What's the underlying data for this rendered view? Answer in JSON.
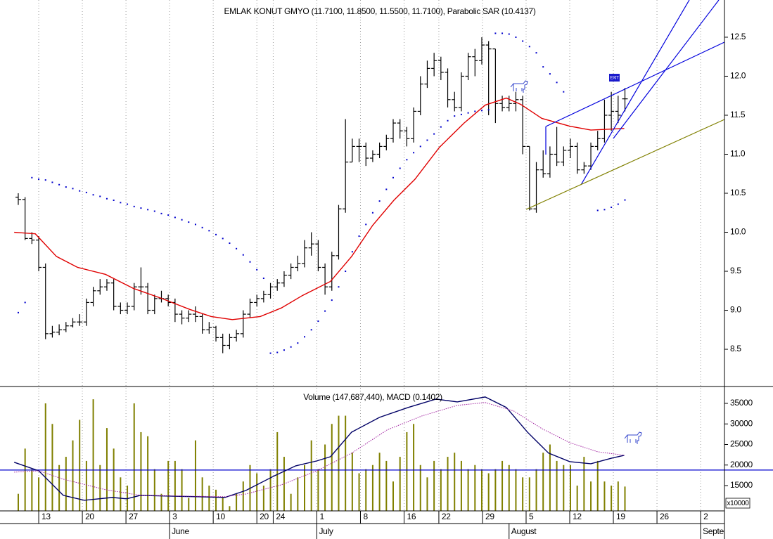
{
  "x_axis": {
    "xlim": [
      -2.68,
      103.6
    ],
    "ticks": [
      {
        "value": 3.0,
        "label": "13"
      },
      {
        "value": 9.4,
        "label": "20"
      },
      {
        "value": 15.8,
        "label": "27"
      },
      {
        "value": 22.2,
        "label": "3"
      },
      {
        "value": 28.6,
        "label": "10"
      },
      {
        "value": 35.0,
        "label": "20"
      },
      {
        "value": 37.4,
        "label": "24"
      },
      {
        "value": 43.8,
        "label": "1"
      },
      {
        "value": 50.2,
        "label": "8"
      },
      {
        "value": 56.6,
        "label": "16"
      },
      {
        "value": 61.7,
        "label": "22"
      },
      {
        "value": 68.1,
        "label": "29"
      },
      {
        "value": 74.5,
        "label": "5"
      },
      {
        "value": 80.9,
        "label": "12"
      },
      {
        "value": 87.3,
        "label": "19"
      },
      {
        "value": 93.7,
        "label": "26"
      },
      {
        "value": 100.1,
        "label": "2"
      }
    ],
    "months": [
      {
        "value": 22.2,
        "label": "June"
      },
      {
        "value": 43.8,
        "label": "July"
      },
      {
        "value": 72.0,
        "label": "August"
      },
      {
        "value": 100.1,
        "label": "Septe"
      }
    ]
  },
  "chart_data": [
    {
      "type": "ohlc",
      "title": "EMLAK KONUT GMYO (11.7100, 11.8500, 11.5500, 11.7100), Parabolic SAR (10.4137)",
      "color": "#000000",
      "ylim": [
        8.023,
        12.977
      ],
      "grid": true,
      "yticks": [
        8.5,
        {
          "value": 9,
          "label": "9.0"
        },
        9.5,
        {
          "value": 10,
          "label": "10.0"
        },
        10.5,
        {
          "value": 11,
          "label": "11.0"
        },
        11.5,
        {
          "value": 12,
          "label": "12.0"
        },
        12.5
      ],
      "open": [
        10.45,
        10.42,
        9.92,
        9.9,
        9.55,
        8.7,
        8.72,
        8.75,
        8.8,
        8.85,
        8.85,
        9.1,
        9.25,
        9.3,
        9.35,
        9.05,
        9.0,
        9.05,
        9.3,
        9.3,
        9.0,
        9.15,
        9.15,
        9.1,
        8.95,
        8.9,
        8.95,
        8.92,
        8.75,
        8.78,
        8.65,
        8.55,
        8.65,
        8.7,
        8.95,
        9.1,
        9.15,
        9.2,
        9.3,
        9.35,
        9.45,
        9.55,
        9.6,
        9.8,
        9.85,
        9.55,
        9.3,
        9.7,
        10.3,
        10.9,
        11.1,
        11.1,
        10.95,
        11.0,
        11.1,
        11.2,
        11.4,
        11.3,
        11.2,
        11.55,
        11.9,
        12.1,
        12.2,
        12.05,
        11.7,
        11.6,
        12.0,
        12.25,
        12.2,
        12.4,
        12.35,
        11.65,
        11.6,
        11.65,
        11.7,
        11.1,
        10.3,
        10.8,
        10.75,
        11.0,
        10.9,
        11.05,
        11.1,
        10.8,
        10.85,
        11.1,
        11.2,
        11.5,
        11.55,
        11.71
      ],
      "high": [
        10.5,
        10.45,
        10.0,
        9.95,
        9.6,
        8.8,
        8.82,
        8.85,
        8.9,
        8.95,
        9.15,
        9.3,
        9.4,
        9.4,
        9.4,
        9.1,
        9.1,
        9.35,
        9.55,
        9.35,
        9.2,
        9.25,
        9.2,
        9.15,
        9.0,
        9.0,
        9.05,
        8.95,
        8.85,
        8.8,
        8.7,
        8.7,
        8.75,
        9.0,
        9.15,
        9.2,
        9.25,
        9.35,
        9.4,
        9.5,
        9.6,
        9.7,
        9.9,
        10.0,
        9.9,
        9.6,
        9.75,
        10.35,
        11.45,
        11.2,
        11.2,
        11.15,
        11.05,
        11.15,
        11.25,
        11.45,
        11.45,
        11.35,
        11.6,
        12.0,
        12.2,
        12.3,
        12.25,
        12.1,
        11.8,
        12.05,
        12.3,
        12.35,
        12.5,
        12.45,
        12.35,
        11.75,
        11.75,
        11.8,
        11.75,
        11.1,
        10.9,
        11.05,
        11.1,
        11.35,
        11.1,
        11.2,
        11.15,
        10.9,
        11.15,
        11.3,
        11.7,
        11.8,
        11.75,
        11.85
      ],
      "low": [
        10.35,
        9.9,
        9.85,
        9.5,
        8.63,
        8.65,
        8.68,
        8.72,
        8.78,
        8.8,
        8.8,
        9.05,
        9.2,
        9.25,
        9.0,
        8.95,
        8.95,
        9.0,
        9.2,
        8.95,
        8.95,
        9.1,
        9.05,
        8.85,
        8.82,
        8.85,
        8.85,
        8.7,
        8.7,
        8.6,
        8.45,
        8.5,
        8.6,
        8.65,
        8.9,
        9.05,
        9.1,
        9.15,
        9.25,
        9.3,
        9.4,
        9.5,
        9.55,
        9.7,
        9.5,
        9.2,
        9.25,
        9.65,
        10.25,
        10.9,
        10.9,
        10.85,
        10.9,
        10.95,
        11.05,
        11.15,
        11.2,
        11.1,
        11.15,
        11.5,
        11.85,
        12.0,
        11.95,
        11.6,
        11.55,
        11.55,
        11.95,
        12.0,
        12.15,
        11.5,
        11.4,
        11.55,
        11.55,
        11.55,
        11.0,
        10.28,
        10.25,
        10.7,
        10.7,
        10.85,
        10.85,
        10.95,
        10.75,
        10.75,
        10.8,
        11.05,
        11.15,
        11.3,
        11.4,
        11.55
      ],
      "close": [
        10.42,
        9.92,
        9.9,
        9.55,
        8.7,
        8.72,
        8.75,
        8.8,
        8.85,
        8.85,
        9.1,
        9.25,
        9.3,
        9.35,
        9.05,
        9.0,
        9.05,
        9.3,
        9.3,
        9.0,
        9.15,
        9.15,
        9.1,
        8.95,
        8.9,
        8.95,
        8.92,
        8.75,
        8.78,
        8.65,
        8.55,
        8.65,
        8.7,
        8.95,
        9.1,
        9.15,
        9.2,
        9.3,
        9.35,
        9.45,
        9.55,
        9.6,
        9.8,
        9.85,
        9.55,
        9.3,
        9.7,
        10.3,
        10.9,
        11.1,
        11.1,
        10.95,
        11.0,
        11.1,
        11.2,
        11.4,
        11.3,
        11.2,
        11.55,
        11.9,
        12.1,
        12.2,
        12.05,
        11.7,
        11.6,
        12.0,
        12.25,
        12.2,
        12.4,
        12.35,
        11.65,
        11.6,
        11.65,
        11.7,
        11.1,
        10.3,
        10.8,
        10.75,
        11.0,
        10.9,
        11.05,
        11.1,
        10.8,
        10.85,
        11.1,
        11.2,
        11.5,
        11.55,
        11.5,
        11.71
      ],
      "overlays": [
        {
          "kind": "line",
          "color": "#e00000",
          "x": [
            -0.6,
            2.5,
            5.6,
            8.7,
            12.8,
            16.9,
            21.1,
            25.2,
            28.3,
            31.4,
            35.5,
            38.6,
            41.7,
            45.8,
            48.9,
            52.0,
            55.1,
            58.2,
            61.8,
            65.4,
            68.5,
            71.6,
            73.7,
            76.8,
            80.9,
            84.0,
            88.9
          ],
          "values": [
            10.0,
            9.98,
            9.69,
            9.55,
            9.46,
            9.28,
            9.15,
            9.01,
            8.92,
            8.88,
            8.92,
            9.03,
            9.19,
            9.37,
            9.69,
            10.09,
            10.41,
            10.68,
            11.09,
            11.4,
            11.63,
            11.72,
            11.64,
            11.46,
            11.36,
            11.31,
            11.33
          ]
        },
        {
          "kind": "dots",
          "color": "#0000cc",
          "values": [
            8.97,
            9.1,
            10.7,
            10.68,
            10.67,
            10.64,
            10.61,
            10.58,
            10.56,
            10.53,
            10.51,
            10.48,
            10.46,
            10.43,
            10.41,
            10.38,
            10.36,
            10.33,
            10.31,
            10.29,
            10.27,
            10.24,
            10.22,
            10.19,
            10.16,
            10.13,
            10.1,
            10.06,
            10.02,
            9.97,
            9.92,
            9.86,
            9.79,
            9.71,
            9.62,
            9.52,
            9.41,
            8.45,
            8.46,
            8.49,
            8.53,
            8.58,
            8.66,
            8.75,
            8.86,
            8.99,
            9.13,
            9.3,
            9.5,
            9.75,
            9.95,
            10.1,
            10.25,
            10.4,
            10.55,
            10.7,
            10.82,
            10.93,
            11.02,
            11.1,
            11.18,
            11.26,
            11.35,
            11.43,
            11.49,
            11.51,
            11.53,
            11.55,
            11.56,
            11.57,
            12.55,
            12.55,
            12.54,
            12.5,
            12.45,
            12.38,
            12.3,
            12.12,
            12.03,
            11.92,
            11.8,
            null,
            null,
            null,
            null,
            10.28,
            10.29,
            10.32,
            10.36,
            10.4137
          ]
        }
      ],
      "annotation": "EXIT"
    },
    {
      "type": "bar",
      "title": "Volume (147,687,440), MACD (0.1402)",
      "color": "#808000",
      "ylim": [
        8846,
        38932
      ],
      "yticks": [
        15000,
        20000,
        25000,
        30000,
        35000
      ],
      "unit_label": "x10000",
      "y2lim": [
        -0.389,
        0.789
      ],
      "zero_line_color": "#0000cc",
      "values": [
        13000,
        24000,
        19000,
        17000,
        35000,
        30000,
        20000,
        22000,
        26000,
        31000,
        21000,
        36000,
        20000,
        29000,
        24000,
        17000,
        15000,
        35000,
        28000,
        27000,
        19000,
        13000,
        21000,
        21000,
        19000,
        12000,
        26000,
        17000,
        15000,
        14000,
        12000,
        10000,
        13000,
        16000,
        20000,
        18000,
        15000,
        19000,
        28000,
        22000,
        13000,
        17000,
        20000,
        26000,
        19000,
        25000,
        30000,
        32000,
        32000,
        23000,
        18000,
        19000,
        20000,
        23000,
        21000,
        16000,
        22000,
        28000,
        30000,
        20000,
        17000,
        21000,
        19000,
        22000,
        23000,
        21000,
        19000,
        20000,
        19000,
        18000,
        19000,
        21000,
        20000,
        19000,
        17000,
        17000,
        19000,
        23000,
        25000,
        21000,
        20000,
        20000,
        15000,
        22000,
        16000,
        21000,
        16000,
        15000,
        16000,
        14768.744
      ],
      "series": [
        {
          "color": "#000066",
          "style": "solid",
          "axis": "y2",
          "x": [
            -0.6,
            3.0,
            6.6,
            9.7,
            13.8,
            15.9,
            17.9,
            22.1,
            26.2,
            30.3,
            33.4,
            37.6,
            40.7,
            43.8,
            45.8,
            48.9,
            53.0,
            57.2,
            61.3,
            64.4,
            68.5,
            71.6,
            74.7,
            77.8,
            80.9,
            84.0,
            87.1,
            88.9
          ],
          "values": [
            0.074,
            -0.007,
            -0.241,
            -0.288,
            -0.261,
            -0.274,
            -0.241,
            -0.248,
            -0.254,
            -0.261,
            -0.194,
            -0.054,
            0.04,
            0.087,
            0.127,
            0.361,
            0.502,
            0.596,
            0.676,
            0.649,
            0.696,
            0.596,
            0.361,
            0.161,
            0.08,
            0.06,
            0.114,
            0.1402
          ]
        },
        {
          "color": "#a020a0",
          "style": "dotted",
          "axis": "y2",
          "x": [
            -0.6,
            3.0,
            6.6,
            12.8,
            17.9,
            24.1,
            30.3,
            33.4,
            38.6,
            43.8,
            48.9,
            54.1,
            59.2,
            64.4,
            68.5,
            72.7,
            76.8,
            80.9,
            85.0,
            88.9
          ],
          "values": [
            -0.02,
            -0.007,
            -0.087,
            -0.187,
            -0.241,
            -0.248,
            -0.254,
            -0.228,
            -0.141,
            -0.007,
            0.161,
            0.382,
            0.515,
            0.616,
            0.643,
            0.562,
            0.395,
            0.261,
            0.174,
            0.141
          ]
        }
      ]
    }
  ]
}
